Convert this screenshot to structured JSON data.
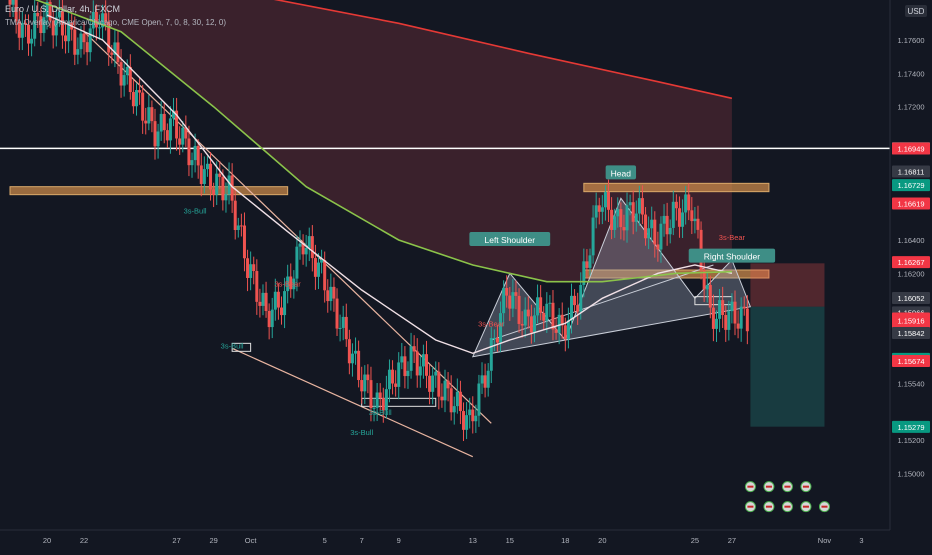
{
  "header": {
    "symbol": "Euro / U.S. Dollar, 4h, FXCM",
    "indicator": "TMA Overlay (America/Chicago, CME Open, 7, 0, 8, 30, 12, 0)"
  },
  "currency_badge": "USD",
  "price_badges": [
    {
      "value": "1.16950",
      "kind": "white"
    },
    {
      "value": "1.16949",
      "kind": "red"
    },
    {
      "value": "1.16811",
      "kind": "gray"
    },
    {
      "value": "1.16729",
      "kind": "green"
    },
    {
      "value": "1.16619",
      "kind": "red"
    },
    {
      "value": "1.16267",
      "kind": "red"
    },
    {
      "value": "1.16052",
      "kind": "gray"
    },
    {
      "value": "1.15966",
      "kind": "gray"
    },
    {
      "value": "1.15929",
      "kind": "red"
    },
    {
      "value": "03:41:50",
      "kind": "red"
    },
    {
      "value": "1.15916",
      "kind": "red"
    },
    {
      "value": "1.15842",
      "kind": "gray"
    },
    {
      "value": "1.15687",
      "kind": "green"
    },
    {
      "value": "1.15674",
      "kind": "red"
    },
    {
      "value": "1.15279",
      "kind": "green"
    }
  ],
  "pattern_labels": {
    "head": "Head",
    "left_shoulder": "Left Shoulder",
    "right_shoulder": "Right Shoulder"
  },
  "signal_labels": [
    {
      "text": "3s-Bull",
      "at": [
        "2025-09-28",
        1.1656
      ],
      "color": "#26a69a"
    },
    {
      "text": "3s-Bull",
      "at": [
        "2025-09-30",
        1.1575
      ],
      "color": "#26a69a"
    },
    {
      "text": "3s-Bear",
      "at": [
        "2025-10-03",
        1.1612
      ],
      "color": "#ef5350"
    },
    {
      "text": "3s-Bull",
      "at": [
        "2025-10-07",
        1.1523
      ],
      "color": "#26a69a"
    },
    {
      "text": "3s-Bull",
      "at": [
        "2025-10-08",
        1.1535
      ],
      "color": "#26a69a"
    },
    {
      "text": "3s-Bear",
      "at": [
        "2025-10-14",
        1.1588
      ],
      "color": "#ef5350"
    },
    {
      "text": "3s-Bear",
      "at": [
        "2025-10-27",
        1.164
      ],
      "color": "#ef5350"
    }
  ],
  "chart_data": {
    "type": "candlestick",
    "symbol": "EURUSD",
    "timeframe": "4h",
    "x_ticks": [
      "20",
      "22",
      "27",
      "29",
      "Oct",
      "5",
      "7",
      "9",
      "13",
      "15",
      "18",
      "20",
      "25",
      "27",
      "Nov",
      "3"
    ],
    "y_ticks": [
      "1.17600",
      "1.17400",
      "1.17200",
      "1.16400",
      "1.16200",
      "1.15540",
      "1.15200",
      "1.15000"
    ],
    "x_range": [
      "2025-09-18",
      "2025-11-04"
    ],
    "ylim": [
      1.1475,
      1.1775
    ],
    "close_series": [
      [
        "2025-09-18",
        1.1785
      ],
      [
        "2025-09-19",
        1.1762
      ],
      [
        "2025-09-20",
        1.1775
      ],
      [
        "2025-09-21",
        1.1768
      ],
      [
        "2025-09-22",
        1.1755
      ],
      [
        "2025-09-23",
        1.1775
      ],
      [
        "2025-09-24",
        1.1745
      ],
      [
        "2025-09-25",
        1.1725
      ],
      [
        "2025-09-26",
        1.1705
      ],
      [
        "2025-09-27",
        1.171
      ],
      [
        "2025-09-28",
        1.169
      ],
      [
        "2025-09-29",
        1.1675
      ],
      [
        "2025-09-30",
        1.167
      ],
      [
        "2025-10-01",
        1.1625
      ],
      [
        "2025-10-02",
        1.1595
      ],
      [
        "2025-10-03",
        1.1605
      ],
      [
        "2025-10-04",
        1.164
      ],
      [
        "2025-10-05",
        1.162
      ],
      [
        "2025-10-06",
        1.159
      ],
      [
        "2025-10-07",
        1.156
      ],
      [
        "2025-10-08",
        1.154
      ],
      [
        "2025-10-09",
        1.156
      ],
      [
        "2025-10-10",
        1.157
      ],
      [
        "2025-10-11",
        1.1555
      ],
      [
        "2025-10-12",
        1.1545
      ],
      [
        "2025-10-13",
        1.153
      ],
      [
        "2025-10-14",
        1.1565
      ],
      [
        "2025-10-15",
        1.161
      ],
      [
        "2025-10-16",
        1.159
      ],
      [
        "2025-10-17",
        1.16
      ],
      [
        "2025-10-18",
        1.1585
      ],
      [
        "2025-10-19",
        1.161
      ],
      [
        "2025-10-20",
        1.1665
      ],
      [
        "2025-10-21",
        1.165
      ],
      [
        "2025-10-22",
        1.166
      ],
      [
        "2025-10-23",
        1.164
      ],
      [
        "2025-10-24",
        1.1655
      ],
      [
        "2025-10-25",
        1.166
      ],
      [
        "2025-10-26",
        1.1595
      ],
      [
        "2025-10-27",
        1.1595
      ],
      [
        "2025-10-28",
        1.1593
      ]
    ],
    "moving_averages": [
      {
        "color": "#f0e0e6",
        "points": [
          [
            "2025-09-20",
            1.1775
          ],
          [
            "2025-09-23",
            1.176
          ],
          [
            "2025-09-27",
            1.1715
          ],
          [
            "2025-09-30",
            1.1672
          ],
          [
            "2025-10-03",
            1.1645
          ],
          [
            "2025-10-07",
            1.161
          ],
          [
            "2025-10-11",
            1.158
          ],
          [
            "2025-10-13",
            1.1572
          ],
          [
            "2025-10-15",
            1.158
          ],
          [
            "2025-10-18",
            1.159
          ],
          [
            "2025-10-20",
            1.1605
          ],
          [
            "2025-10-23",
            1.162
          ],
          [
            "2025-10-25",
            1.1625
          ],
          [
            "2025-10-27",
            1.162
          ]
        ]
      },
      {
        "color": "#8bc34a",
        "points": [
          [
            "2025-09-18",
            1.179
          ],
          [
            "2025-09-24",
            1.1765
          ],
          [
            "2025-09-29",
            1.172
          ],
          [
            "2025-10-04",
            1.1672
          ],
          [
            "2025-10-09",
            1.164
          ],
          [
            "2025-10-13",
            1.1625
          ],
          [
            "2025-10-17",
            1.1615
          ],
          [
            "2025-10-20",
            1.1615
          ],
          [
            "2025-10-24",
            1.162
          ],
          [
            "2025-10-27",
            1.1621
          ]
        ]
      },
      {
        "color": "#e53935",
        "points": [
          [
            "2025-09-18",
            1.182
          ],
          [
            "2025-09-25",
            1.18
          ],
          [
            "2025-10-02",
            1.1785
          ],
          [
            "2025-10-09",
            1.177
          ],
          [
            "2025-10-16",
            1.1752
          ],
          [
            "2025-10-23",
            1.1735
          ],
          [
            "2025-10-27",
            1.1725
          ]
        ]
      }
    ],
    "horizontal_lines": [
      {
        "price": 1.1695,
        "color": "#ffffff"
      }
    ],
    "zones": [
      {
        "from": [
          "2025-09-18",
          1.1672
        ],
        "to": [
          "2025-10-03",
          1.1668
        ],
        "color": "#c8884a"
      },
      {
        "from": [
          "2025-10-19",
          1.1674
        ],
        "to": [
          "2025-10-29",
          1.1669
        ],
        "color": "#c8884a"
      },
      {
        "from": [
          "2025-10-19",
          1.1622
        ],
        "to": [
          "2025-10-29",
          1.1618
        ],
        "color": "#c8884a"
      }
    ],
    "boxes": [
      {
        "from": [
          "2025-09-30",
          1.1578
        ],
        "to": [
          "2025-10-01",
          1.1574
        ]
      },
      {
        "from": [
          "2025-10-07",
          1.1545
        ],
        "to": [
          "2025-10-11",
          1.1538
        ]
      },
      {
        "from": [
          "2025-10-25",
          1.1606
        ],
        "to": [
          "2025-10-27",
          1.1601
        ]
      }
    ],
    "trendlines": [
      {
        "from": [
          "2025-09-22",
          1.1765
        ],
        "to": [
          "2025-10-14",
          1.153
        ],
        "color": "#e8b4a0"
      },
      {
        "from": [
          "2025-09-30",
          1.1575
        ],
        "to": [
          "2025-10-13",
          1.151
        ],
        "color": "#e8b4a0"
      }
    ],
    "head_and_shoulders": {
      "points": [
        [
          "2025-10-13",
          1.157
        ],
        [
          "2025-10-15",
          1.162
        ],
        [
          "2025-10-18",
          1.158
        ],
        [
          "2025-10-21",
          1.1665
        ],
        [
          "2025-10-25",
          1.1605
        ],
        [
          "2025-10-27",
          1.1628
        ],
        [
          "2025-10-28",
          1.16
        ]
      ],
      "neckline": [
        [
          "2025-10-14",
          1.158
        ],
        [
          "2025-10-26",
          1.1625
        ]
      ]
    },
    "position": {
      "entry": 1.16,
      "stop": 1.1626,
      "target": 1.1528,
      "from": "2025-10-28",
      "to": "2025-11-01"
    }
  }
}
